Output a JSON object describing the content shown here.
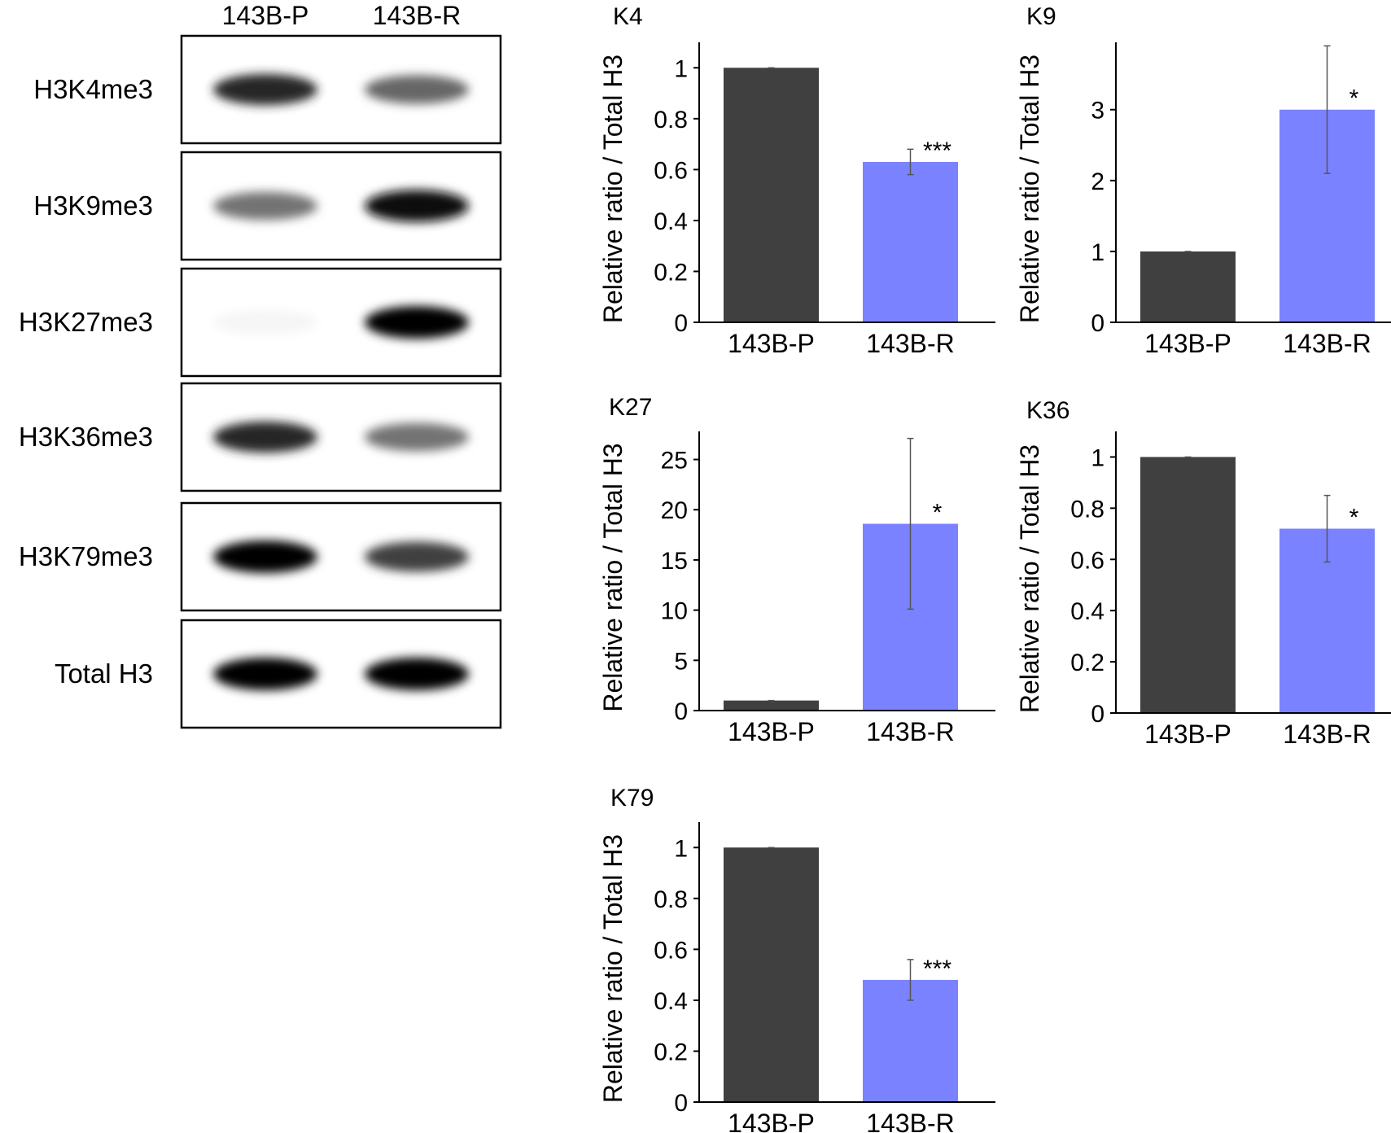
{
  "blot": {
    "lanes": [
      "143B-P",
      "143B-R"
    ],
    "rows": [
      {
        "label": "H3K4me3",
        "intensity": [
          0.85,
          0.6
        ]
      },
      {
        "label": "H3K9me3",
        "intensity": [
          0.55,
          0.95
        ]
      },
      {
        "label": "H3K27me3",
        "intensity": [
          0.04,
          1.0
        ]
      },
      {
        "label": "H3K36me3",
        "intensity": [
          0.85,
          0.55
        ]
      },
      {
        "label": "H3K79me3",
        "intensity": [
          1.0,
          0.75
        ]
      },
      {
        "label": "Total H3",
        "intensity": [
          1.0,
          1.0
        ]
      }
    ]
  },
  "colors": {
    "parental": "#404040",
    "resistant": "#7b82ff",
    "axis": "#000000",
    "error_bar": "#555555"
  },
  "chart_data": [
    {
      "type": "bar",
      "title": "K4",
      "categories": [
        "143B-P",
        "143B-R"
      ],
      "values": [
        1.0,
        0.63
      ],
      "error": [
        0.0,
        0.05
      ],
      "significance": [
        "",
        "***"
      ],
      "ylabel": "Relative ratio / Total H3",
      "ylim": [
        0,
        1.1
      ],
      "yticks": [
        0,
        0.2,
        0.4,
        0.6,
        0.8,
        1
      ],
      "ytick_labels": [
        "0",
        "0.2",
        "0.4",
        "0.6",
        "0.8",
        "1"
      ]
    },
    {
      "type": "bar",
      "title": "K9",
      "categories": [
        "143B-P",
        "143B-R"
      ],
      "values": [
        1.0,
        3.0
      ],
      "error": [
        0.0,
        0.9
      ],
      "significance": [
        "",
        "*"
      ],
      "ylabel": "Relative ratio / Total H3",
      "ylim": [
        0,
        3.95
      ],
      "yticks": [
        0,
        1,
        2,
        3
      ],
      "ytick_labels": [
        "0",
        "1",
        "2",
        "3"
      ]
    },
    {
      "type": "bar",
      "title": "K27",
      "categories": [
        "143B-P",
        "143B-R"
      ],
      "values": [
        1.0,
        18.6
      ],
      "error": [
        0.0,
        8.5
      ],
      "significance": [
        "",
        "*"
      ],
      "ylabel": "Relative ratio / Total H3",
      "ylim": [
        0,
        27.8
      ],
      "yticks": [
        0,
        5,
        10,
        15,
        20,
        25
      ],
      "ytick_labels": [
        "0",
        "5",
        "10",
        "15",
        "20",
        "25"
      ]
    },
    {
      "type": "bar",
      "title": "K36",
      "categories": [
        "143B-P",
        "143B-R"
      ],
      "values": [
        1.0,
        0.72
      ],
      "error": [
        0.0,
        0.13
      ],
      "significance": [
        "",
        "*"
      ],
      "ylabel": "Relative ratio / Total H3",
      "ylim": [
        0,
        1.1
      ],
      "yticks": [
        0,
        0.2,
        0.4,
        0.6,
        0.8,
        1
      ],
      "ytick_labels": [
        "0",
        "0.2",
        "0.4",
        "0.6",
        "0.8",
        "1"
      ]
    },
    {
      "type": "bar",
      "title": "K79",
      "categories": [
        "143B-P",
        "143B-R"
      ],
      "values": [
        1.0,
        0.48
      ],
      "error": [
        0.0,
        0.08
      ],
      "significance": [
        "",
        "***"
      ],
      "ylabel": "Relative ratio / Total H3",
      "ylim": [
        0,
        1.1
      ],
      "yticks": [
        0,
        0.2,
        0.4,
        0.6,
        0.8,
        1
      ],
      "ytick_labels": [
        "0",
        "0.2",
        "0.4",
        "0.6",
        "0.8",
        "1"
      ]
    }
  ]
}
